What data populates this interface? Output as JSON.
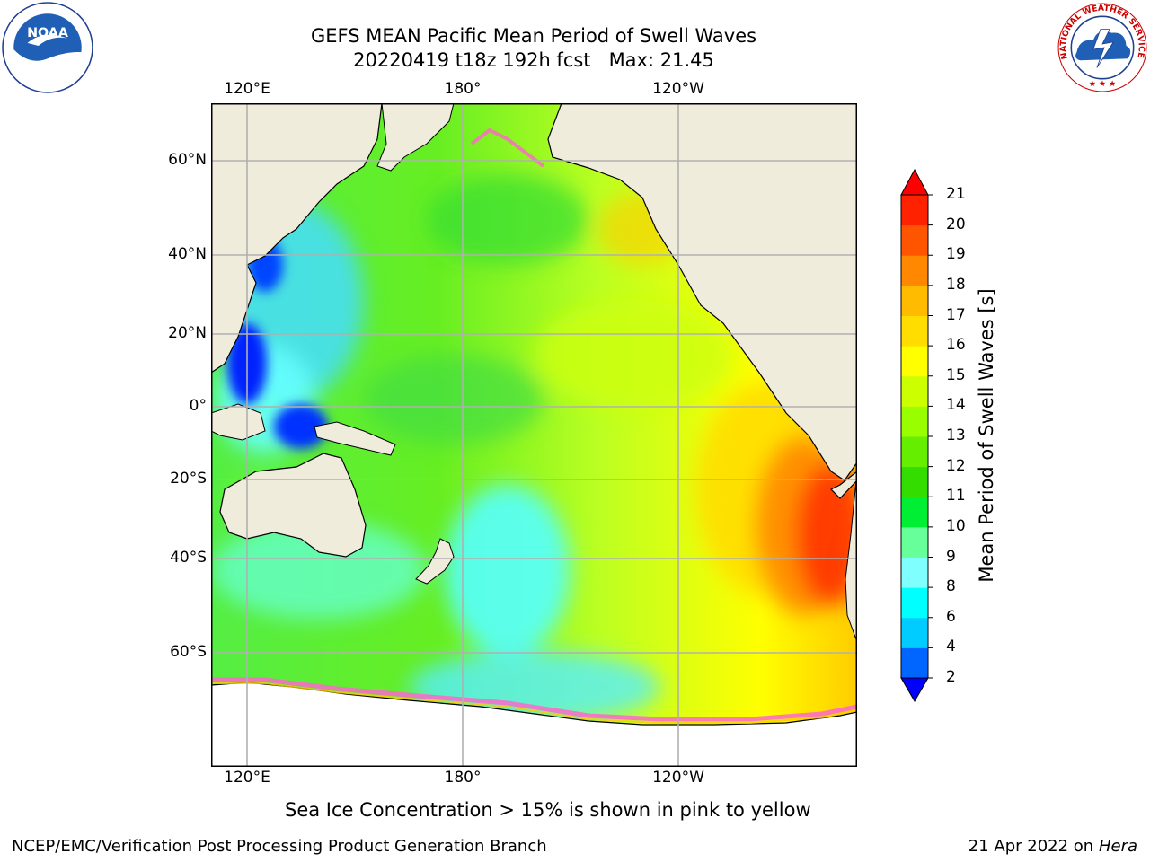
{
  "title": {
    "line1": "GEFS MEAN Pacific Mean Period of Swell Waves",
    "line2": "20220419 t18z 192h fcst   Max: 21.45"
  },
  "map": {
    "lon_labels_top": [
      "120°E",
      "180°",
      "120°W"
    ],
    "lon_labels_bottom": [
      "120°E",
      "180°",
      "120°W"
    ],
    "lat_labels": [
      "60°N",
      "40°N",
      "20°N",
      "0°",
      "20°S",
      "40°S",
      "60°S"
    ],
    "land_color": "#efecdc",
    "ice_note": "Sea Ice Concentration > 15% is shown in pink to yellow"
  },
  "colorbar": {
    "title": "Mean Period of Swell Waves [s]",
    "levels": [
      "2",
      "4",
      "6",
      "8",
      "9",
      "10",
      "11",
      "12",
      "13",
      "14",
      "15",
      "16",
      "17",
      "18",
      "19",
      "20",
      "21"
    ],
    "colors": [
      "#0000ff",
      "#0066ff",
      "#00ccff",
      "#00ffff",
      "#80ffff",
      "#66ff99",
      "#00ee33",
      "#33dd00",
      "#66ee00",
      "#99ff00",
      "#ccff00",
      "#ffff00",
      "#ffdd00",
      "#ffbb00",
      "#ff8800",
      "#ff5500",
      "#ff2200",
      "#ff0000"
    ]
  },
  "logos": {
    "noaa": "NOAA",
    "nws_text": "NATIONAL WEATHER SERVICE"
  },
  "footer": {
    "left": "NCEP/EMC/Verification Post Processing Product Generation Branch",
    "right_prefix": "21 Apr 2022 on ",
    "right_machine": "Hera"
  }
}
